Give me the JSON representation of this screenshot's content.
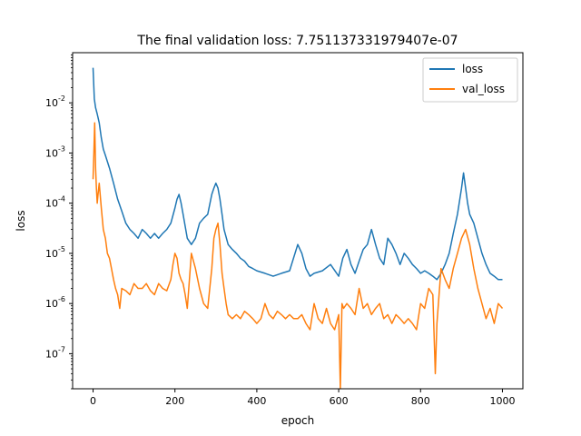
{
  "chart_data": {
    "type": "line",
    "title": "The final validation loss: 7.751137331979407e-07",
    "xlabel": "epoch",
    "ylabel": "loss",
    "xlim": [
      -50,
      1050
    ],
    "ylim": [
      2e-08,
      0.1
    ],
    "yscale": "log",
    "grid": false,
    "legend_position": "top-right",
    "x_ticks": [
      0,
      200,
      400,
      600,
      800,
      1000
    ],
    "x_tick_labels": [
      "0",
      "200",
      "400",
      "600",
      "800",
      "1000"
    ],
    "y_ticks": [
      1e-07,
      1e-06,
      1e-05,
      0.0001,
      0.001,
      0.01
    ],
    "y_tick_labels": [
      "10^-7",
      "10^-6",
      "10^-5",
      "10^-4",
      "10^-3",
      "10^-2"
    ],
    "series": [
      {
        "name": "loss",
        "color": "#1f77b4",
        "x": [
          0,
          3,
          6,
          10,
          15,
          20,
          25,
          30,
          40,
          50,
          60,
          70,
          80,
          90,
          100,
          110,
          120,
          130,
          140,
          150,
          160,
          170,
          180,
          190,
          200,
          205,
          210,
          215,
          220,
          230,
          240,
          250,
          260,
          270,
          280,
          290,
          295,
          300,
          305,
          310,
          315,
          320,
          330,
          340,
          350,
          360,
          370,
          380,
          390,
          400,
          420,
          440,
          460,
          480,
          500,
          510,
          520,
          530,
          540,
          560,
          580,
          600,
          610,
          620,
          630,
          640,
          650,
          660,
          670,
          680,
          690,
          700,
          710,
          720,
          730,
          740,
          750,
          760,
          770,
          780,
          790,
          800,
          810,
          820,
          830,
          840,
          850,
          860,
          870,
          880,
          890,
          900,
          905,
          910,
          915,
          920,
          930,
          940,
          950,
          960,
          970,
          980,
          990,
          1000
        ],
        "y": [
          0.05,
          0.012,
          0.008,
          0.006,
          0.004,
          0.002,
          0.0012,
          0.0009,
          0.0005,
          0.00025,
          0.00012,
          7e-05,
          4e-05,
          3e-05,
          2.5e-05,
          2e-05,
          3e-05,
          2.5e-05,
          2e-05,
          2.5e-05,
          2e-05,
          2.5e-05,
          3e-05,
          4e-05,
          8e-05,
          0.00012,
          0.00015,
          0.0001,
          6e-05,
          2e-05,
          1.5e-05,
          2e-05,
          4e-05,
          5e-05,
          6e-05,
          0.00015,
          0.0002,
          0.00025,
          0.0002,
          0.00012,
          6e-05,
          3e-05,
          1.5e-05,
          1.2e-05,
          1e-05,
          8e-06,
          7e-06,
          5.5e-06,
          5e-06,
          4.5e-06,
          4e-06,
          3.5e-06,
          4e-06,
          4.5e-06,
          1.5e-05,
          1e-05,
          5e-06,
          3.5e-06,
          4e-06,
          4.5e-06,
          6e-06,
          3.5e-06,
          8e-06,
          1.2e-05,
          6e-06,
          4e-06,
          7e-06,
          1.2e-05,
          1.5e-05,
          3e-05,
          1.5e-05,
          8e-06,
          6e-06,
          2e-05,
          1.5e-05,
          1e-05,
          6e-06,
          1e-05,
          8e-06,
          6e-06,
          5e-06,
          4e-06,
          4.5e-06,
          4e-06,
          3.5e-06,
          3e-06,
          4e-06,
          6e-06,
          1e-05,
          2.5e-05,
          6e-05,
          0.0002,
          0.0004,
          0.0002,
          0.0001,
          6e-05,
          4e-05,
          2e-05,
          1e-05,
          6e-06,
          4e-06,
          3.5e-06,
          3e-06,
          3e-06
        ]
      },
      {
        "name": "val_loss",
        "color": "#ff7f0e",
        "x": [
          0,
          2,
          4,
          6,
          8,
          10,
          12,
          15,
          20,
          25,
          30,
          35,
          40,
          45,
          50,
          55,
          60,
          65,
          70,
          80,
          90,
          100,
          110,
          120,
          130,
          140,
          150,
          160,
          170,
          180,
          190,
          195,
          200,
          205,
          210,
          215,
          220,
          225,
          230,
          240,
          250,
          260,
          270,
          280,
          290,
          295,
          300,
          305,
          310,
          315,
          320,
          325,
          330,
          340,
          350,
          360,
          370,
          380,
          390,
          400,
          410,
          420,
          430,
          440,
          450,
          460,
          470,
          480,
          490,
          500,
          510,
          520,
          530,
          540,
          550,
          560,
          570,
          580,
          590,
          600,
          604,
          608,
          612,
          620,
          630,
          640,
          650,
          660,
          670,
          680,
          690,
          700,
          710,
          720,
          730,
          740,
          750,
          760,
          770,
          780,
          790,
          800,
          810,
          820,
          830,
          836,
          840,
          850,
          860,
          870,
          880,
          890,
          900,
          910,
          920,
          930,
          940,
          950,
          960,
          970,
          980,
          990,
          1000
        ],
        "y": [
          0.0003,
          0.001,
          0.004,
          0.0005,
          0.0002,
          0.0001,
          0.00015,
          0.00025,
          8e-05,
          3e-05,
          2e-05,
          1e-05,
          8e-06,
          5e-06,
          3e-06,
          2e-06,
          1.5e-06,
          8e-07,
          2e-06,
          1.8e-06,
          1.5e-06,
          2.5e-06,
          2e-06,
          2e-06,
          2.5e-06,
          1.8e-06,
          1.5e-06,
          2.5e-06,
          2e-06,
          1.8e-06,
          3e-06,
          6e-06,
          1e-05,
          8e-06,
          4e-06,
          3e-06,
          2.5e-06,
          1.5e-06,
          8e-07,
          1e-05,
          5e-06,
          2e-06,
          1e-06,
          8e-07,
          5e-06,
          2e-05,
          3e-05,
          4e-05,
          1.5e-05,
          4e-06,
          2e-06,
          1e-06,
          6e-07,
          5e-07,
          6e-07,
          5e-07,
          7e-07,
          6e-07,
          5e-07,
          4e-07,
          5e-07,
          1e-06,
          6e-07,
          5e-07,
          7e-07,
          6e-07,
          5e-07,
          6e-07,
          5e-07,
          5e-07,
          6e-07,
          4e-07,
          3e-07,
          1e-06,
          5e-07,
          4e-07,
          8e-07,
          4e-07,
          3e-07,
          6e-07,
          2e-08,
          1e-06,
          8e-07,
          1e-06,
          8e-07,
          6e-07,
          2e-06,
          8e-07,
          1e-06,
          6e-07,
          8e-07,
          1e-06,
          5e-07,
          6e-07,
          4e-07,
          6e-07,
          5e-07,
          4e-07,
          5e-07,
          4e-07,
          3e-07,
          1e-06,
          8e-07,
          2e-06,
          1.5e-06,
          4e-08,
          4e-07,
          5e-06,
          3e-06,
          2e-06,
          5e-06,
          1e-05,
          2e-05,
          3e-05,
          1.5e-05,
          5e-06,
          2e-06,
          1e-06,
          5e-07,
          8e-07,
          4e-07,
          1e-06,
          8e-07
        ]
      }
    ]
  }
}
